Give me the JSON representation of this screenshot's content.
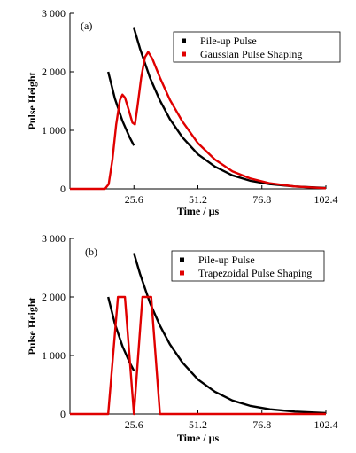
{
  "chart_data": [
    {
      "type": "line",
      "panel_label": "(a)",
      "xlabel": "Time / µs",
      "ylabel": "Pulse Height",
      "xlim": [
        0,
        102.4
      ],
      "ylim": [
        0,
        3000
      ],
      "xticks": [
        25.6,
        51.2,
        76.8,
        102.4
      ],
      "xtick_labels": [
        "25.6",
        "51.2",
        "76.8",
        "102.4"
      ],
      "yticks": [
        0,
        1000,
        2000,
        3000
      ],
      "ytick_labels": [
        "0",
        "1 000",
        "2 000",
        "3 000"
      ],
      "legend_position": "top-right",
      "series": [
        {
          "name": "Pile-up Pulse",
          "color": "#000000",
          "segments": [
            [
              [
                15.3,
                2000
              ],
              [
                18,
                1540
              ],
              [
                21,
                1160
              ],
              [
                24,
                870
              ],
              [
                25.6,
                740
              ]
            ],
            [
              [
                25.6,
                2750
              ],
              [
                28,
                2400
              ],
              [
                32,
                1900
              ],
              [
                36,
                1510
              ],
              [
                40,
                1190
              ],
              [
                45,
                880
              ],
              [
                51.2,
                590
              ],
              [
                58,
                380
              ],
              [
                65,
                230
              ],
              [
                72,
                140
              ],
              [
                80,
                80
              ],
              [
                90,
                40
              ],
              [
                102.4,
                15
              ]
            ]
          ]
        },
        {
          "name": "Gaussian Pulse Shaping",
          "color": "#e00000",
          "segments": [
            [
              [
                0,
                0
              ],
              [
                14,
                0
              ],
              [
                15.5,
                80
              ],
              [
                17,
                500
              ],
              [
                18.5,
                1100
              ],
              [
                20,
                1520
              ],
              [
                21,
                1610
              ],
              [
                22,
                1560
              ],
              [
                23.5,
                1350
              ],
              [
                25,
                1130
              ],
              [
                26,
                1100
              ],
              [
                27,
                1400
              ],
              [
                28.5,
                1900
              ],
              [
                30,
                2250
              ],
              [
                31.3,
                2340
              ],
              [
                33,
                2220
              ],
              [
                36,
                1900
              ],
              [
                40,
                1520
              ],
              [
                45,
                1150
              ],
              [
                51.2,
                780
              ],
              [
                58,
                500
              ],
              [
                65,
                300
              ],
              [
                72,
                180
              ],
              [
                80,
                95
              ],
              [
                90,
                40
              ],
              [
                102.4,
                10
              ]
            ]
          ]
        }
      ]
    },
    {
      "type": "line",
      "panel_label": "(b)",
      "xlabel": "Time / µs",
      "ylabel": "Pulse Height",
      "xlim": [
        0,
        102.4
      ],
      "ylim": [
        0,
        3000
      ],
      "xticks": [
        25.6,
        51.2,
        76.8,
        102.4
      ],
      "xtick_labels": [
        "25.6",
        "51.2",
        "76.8",
        "102.4"
      ],
      "yticks": [
        0,
        1000,
        2000,
        3000
      ],
      "ytick_labels": [
        "0",
        "1 000",
        "2 000",
        "3 000"
      ],
      "legend_position": "top-right",
      "series": [
        {
          "name": "Pile-up Pulse",
          "color": "#000000",
          "segments": [
            [
              [
                15.3,
                2000
              ],
              [
                18,
                1540
              ],
              [
                21,
                1160
              ],
              [
                24,
                870
              ],
              [
                25.6,
                740
              ]
            ],
            [
              [
                25.6,
                2750
              ],
              [
                28,
                2400
              ],
              [
                32,
                1900
              ],
              [
                36,
                1510
              ],
              [
                40,
                1190
              ],
              [
                45,
                880
              ],
              [
                51.2,
                590
              ],
              [
                58,
                380
              ],
              [
                65,
                230
              ],
              [
                72,
                140
              ],
              [
                80,
                80
              ],
              [
                90,
                40
              ],
              [
                102.4,
                15
              ]
            ]
          ]
        },
        {
          "name": "Trapezoidal Pulse Shaping",
          "color": "#e00000",
          "segments": [
            [
              [
                0,
                0
              ],
              [
                15.3,
                0
              ],
              [
                19.2,
                2000
              ],
              [
                22,
                2000
              ],
              [
                25.6,
                0
              ],
              [
                29,
                2000
              ],
              [
                32.5,
                2000
              ],
              [
                36,
                0
              ],
              [
                102.4,
                0
              ]
            ]
          ]
        }
      ]
    }
  ]
}
